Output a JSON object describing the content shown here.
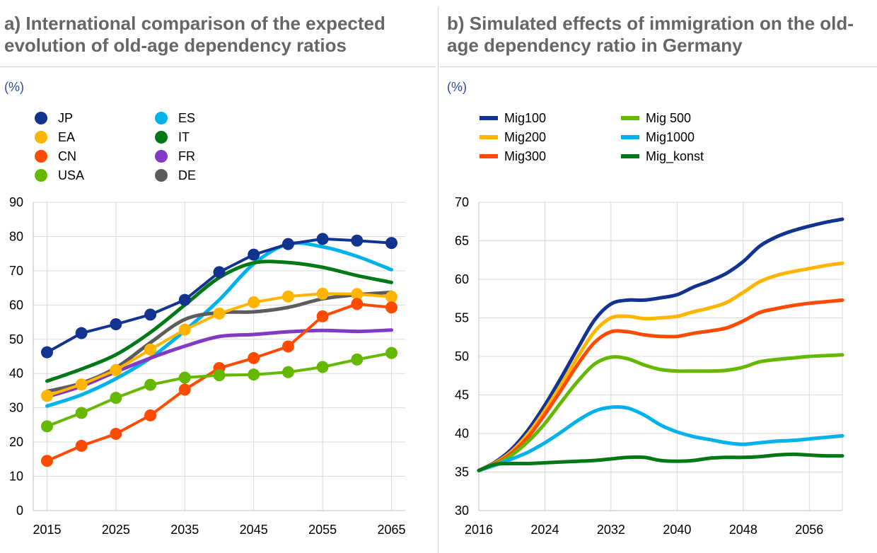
{
  "panel_a": {
    "title": "a) International comparison of the expected evolution of old-age dependency ratios",
    "unit": "(%)"
  },
  "panel_b": {
    "title": "b) Simulated effects of immigration on the old-age dependency ratio in Germany",
    "unit": "(%)"
  },
  "chart_data": [
    {
      "type": "line",
      "title": "a) International comparison of the expected evolution of old-age dependency ratios",
      "ylabel": "(%)",
      "xlabel": "",
      "x": [
        2015,
        2020,
        2025,
        2030,
        2035,
        2040,
        2045,
        2050,
        2055,
        2060,
        2065
      ],
      "xlim": [
        2013,
        2067
      ],
      "ylim": [
        0,
        90
      ],
      "x_ticks": [
        "2015",
        "2025",
        "2035",
        "2045",
        "2055",
        "2065"
      ],
      "y_ticks": [
        "0",
        "10",
        "20",
        "30",
        "40",
        "50",
        "60",
        "70",
        "80",
        "90"
      ],
      "grid": true,
      "legend": "top-left",
      "series": [
        {
          "name": "JP",
          "style": "markers",
          "color": "#12338f",
          "values": [
            46.2,
            51.8,
            54.4,
            57.2,
            61.5,
            69.6,
            74.7,
            77.8,
            79.3,
            78.8,
            78.1
          ]
        },
        {
          "name": "EA",
          "style": "markers",
          "color": "#ffb400",
          "values": [
            33.5,
            36.8,
            41.0,
            47.0,
            52.8,
            57.5,
            60.8,
            62.5,
            63.3,
            63.2,
            62.4
          ]
        },
        {
          "name": "CN",
          "style": "markers",
          "color": "#ff4b00",
          "values": [
            14.5,
            18.9,
            22.4,
            27.8,
            35.3,
            41.6,
            44.5,
            47.9,
            56.7,
            60.3,
            59.3
          ]
        },
        {
          "name": "USA",
          "style": "markers",
          "color": "#65b800",
          "values": [
            24.6,
            28.5,
            32.9,
            36.7,
            38.8,
            39.5,
            39.7,
            40.4,
            41.9,
            44.1,
            46.0
          ]
        },
        {
          "name": "ES",
          "style": "line",
          "color": "#00b1ea",
          "values": [
            30.5,
            33.8,
            38.5,
            44.5,
            52.5,
            61.5,
            72.0,
            77.8,
            77.0,
            74.2,
            70.3
          ]
        },
        {
          "name": "IT",
          "style": "line",
          "color": "#007816",
          "values": [
            37.8,
            41.3,
            45.5,
            52.0,
            60.0,
            68.0,
            72.3,
            72.4,
            71.0,
            68.6,
            66.6
          ]
        },
        {
          "name": "FR",
          "style": "line",
          "color": "#8139c6",
          "values": [
            33.2,
            36.3,
            40.5,
            44.5,
            48.0,
            50.8,
            51.4,
            52.2,
            52.6,
            52.3,
            52.7
          ]
        },
        {
          "name": "DE",
          "style": "line",
          "color": "#5c5c5c",
          "values": [
            34.8,
            37.2,
            41.7,
            49.0,
            55.8,
            57.8,
            58.0,
            59.3,
            61.8,
            63.0,
            63.7
          ]
        }
      ]
    },
    {
      "type": "line",
      "title": "b) Simulated effects of immigration on the old-age dependency ratio in Germany",
      "ylabel": "(%)",
      "xlabel": "",
      "x": [
        2016,
        2018,
        2020,
        2022,
        2024,
        2026,
        2028,
        2030,
        2032,
        2034,
        2036,
        2038,
        2040,
        2042,
        2044,
        2046,
        2048,
        2050,
        2052,
        2054,
        2056,
        2058,
        2060
      ],
      "xlim": [
        2016,
        2060
      ],
      "ylim": [
        30,
        70
      ],
      "x_ticks": [
        "2016",
        "2024",
        "2032",
        "2040",
        "2048",
        "2056"
      ],
      "y_ticks": [
        "30",
        "35",
        "40",
        "45",
        "50",
        "55",
        "60",
        "65",
        "70"
      ],
      "grid": true,
      "legend": "top-left",
      "series": [
        {
          "name": "Mig100",
          "color": "#12338f",
          "values": [
            35.2,
            36.3,
            38.0,
            40.5,
            43.7,
            47.3,
            51.1,
            54.7,
            56.8,
            57.3,
            57.3,
            57.6,
            58.0,
            59.0,
            59.8,
            60.8,
            62.3,
            64.3,
            65.5,
            66.3,
            66.9,
            67.4,
            67.8
          ]
        },
        {
          "name": "Mig200",
          "color": "#ffb400",
          "values": [
            35.2,
            36.2,
            37.7,
            40.0,
            43.0,
            46.4,
            50.0,
            53.2,
            55.0,
            55.2,
            54.9,
            55.0,
            55.2,
            55.8,
            56.3,
            57.0,
            58.3,
            59.7,
            60.5,
            61.0,
            61.4,
            61.8,
            62.1
          ]
        },
        {
          "name": "Mig300",
          "color": "#ff4b00",
          "values": [
            35.2,
            36.1,
            37.5,
            39.6,
            42.5,
            45.7,
            49.0,
            51.8,
            53.2,
            53.2,
            52.8,
            52.6,
            52.6,
            53.0,
            53.3,
            53.7,
            54.6,
            55.7,
            56.2,
            56.6,
            56.9,
            57.1,
            57.3
          ]
        },
        {
          "name": "Mig 500",
          "color": "#65b800",
          "values": [
            35.2,
            36.0,
            37.2,
            39.0,
            41.3,
            44.1,
            46.8,
            49.0,
            49.9,
            49.7,
            48.9,
            48.3,
            48.1,
            48.1,
            48.1,
            48.2,
            48.6,
            49.3,
            49.6,
            49.8,
            50.0,
            50.1,
            50.2
          ]
        },
        {
          "name": "Mig1000",
          "color": "#00b1ea",
          "values": [
            35.2,
            35.9,
            36.7,
            37.6,
            38.8,
            40.2,
            41.7,
            42.9,
            43.4,
            43.3,
            42.4,
            41.1,
            40.2,
            39.6,
            39.2,
            38.8,
            38.6,
            38.8,
            39.0,
            39.1,
            39.3,
            39.5,
            39.7
          ]
        },
        {
          "name": "Mig_konst",
          "color": "#007816",
          "values": [
            35.2,
            36.0,
            36.1,
            36.1,
            36.2,
            36.3,
            36.4,
            36.5,
            36.7,
            36.9,
            36.9,
            36.5,
            36.4,
            36.5,
            36.8,
            36.9,
            36.9,
            37.0,
            37.2,
            37.3,
            37.2,
            37.1,
            37.1
          ]
        }
      ]
    }
  ]
}
